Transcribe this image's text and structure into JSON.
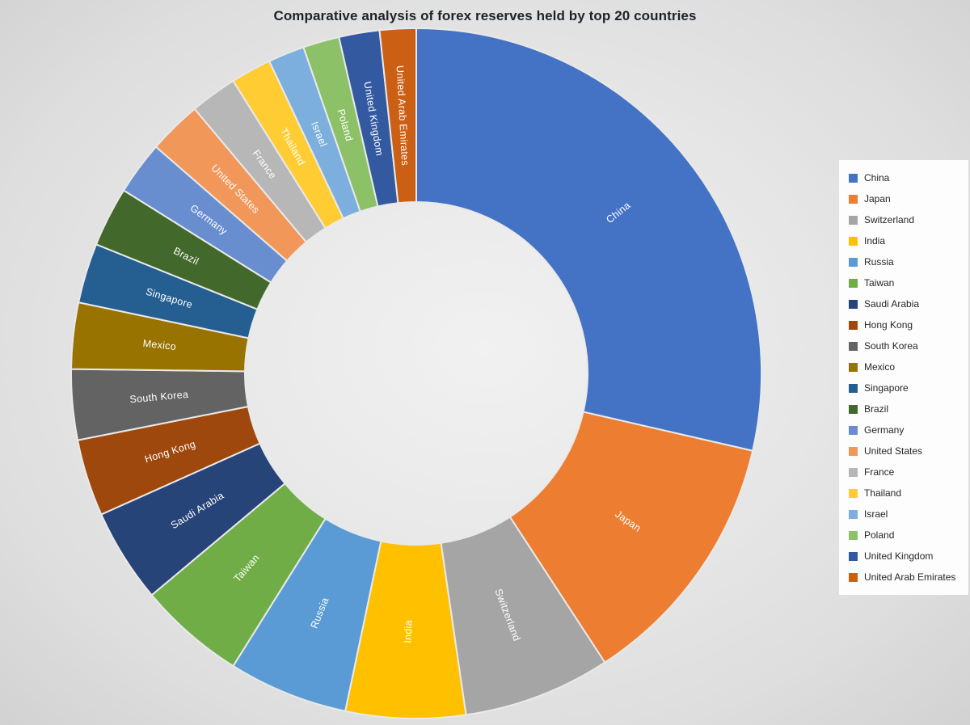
{
  "chart_data": {
    "type": "pie",
    "subtype": "doughnut",
    "title": "Comparative analysis of forex reserves held by top 20 countries",
    "legend_position": "right",
    "start_angle_deg": 0,
    "direction": "clockwise",
    "inner_radius_ratio": 0.5,
    "labels_style": "category names inside slices, white text, rotated radially",
    "values_unit": "percent share of total (estimated from arc angles; no numeric labels shown)",
    "categories": [
      "China",
      "Japan",
      "Switzerland",
      "India",
      "Russia",
      "Taiwan",
      "Saudi Arabia",
      "Hong Kong",
      "South Korea",
      "Mexico",
      "Singapore",
      "Brazil",
      "Germany",
      "United States",
      "France",
      "Thailand",
      "Israel",
      "Poland",
      "United Kingdom",
      "United Arab Emirates"
    ],
    "values": [
      28.6,
      12.2,
      6.9,
      5.6,
      5.6,
      5.0,
      4.4,
      3.6,
      3.3,
      3.1,
      2.8,
      2.8,
      2.5,
      2.5,
      2.2,
      1.9,
      1.7,
      1.7,
      1.9,
      1.7
    ],
    "colors": [
      "#4472C4",
      "#ED7D31",
      "#A5A5A5",
      "#FFC000",
      "#5B9BD5",
      "#70AD47",
      "#264478",
      "#9E480E",
      "#636363",
      "#997300",
      "#255E91",
      "#43682B",
      "#698ED0",
      "#F1975A",
      "#B7B7B7",
      "#FFCD33",
      "#7CAFDD",
      "#8CC168",
      "#335AA1",
      "#CB6015"
    ],
    "slice_separator_color": "#e9e9e9",
    "background_color": "#e7e7e7",
    "legend_background_color": "#fdfdfd"
  }
}
